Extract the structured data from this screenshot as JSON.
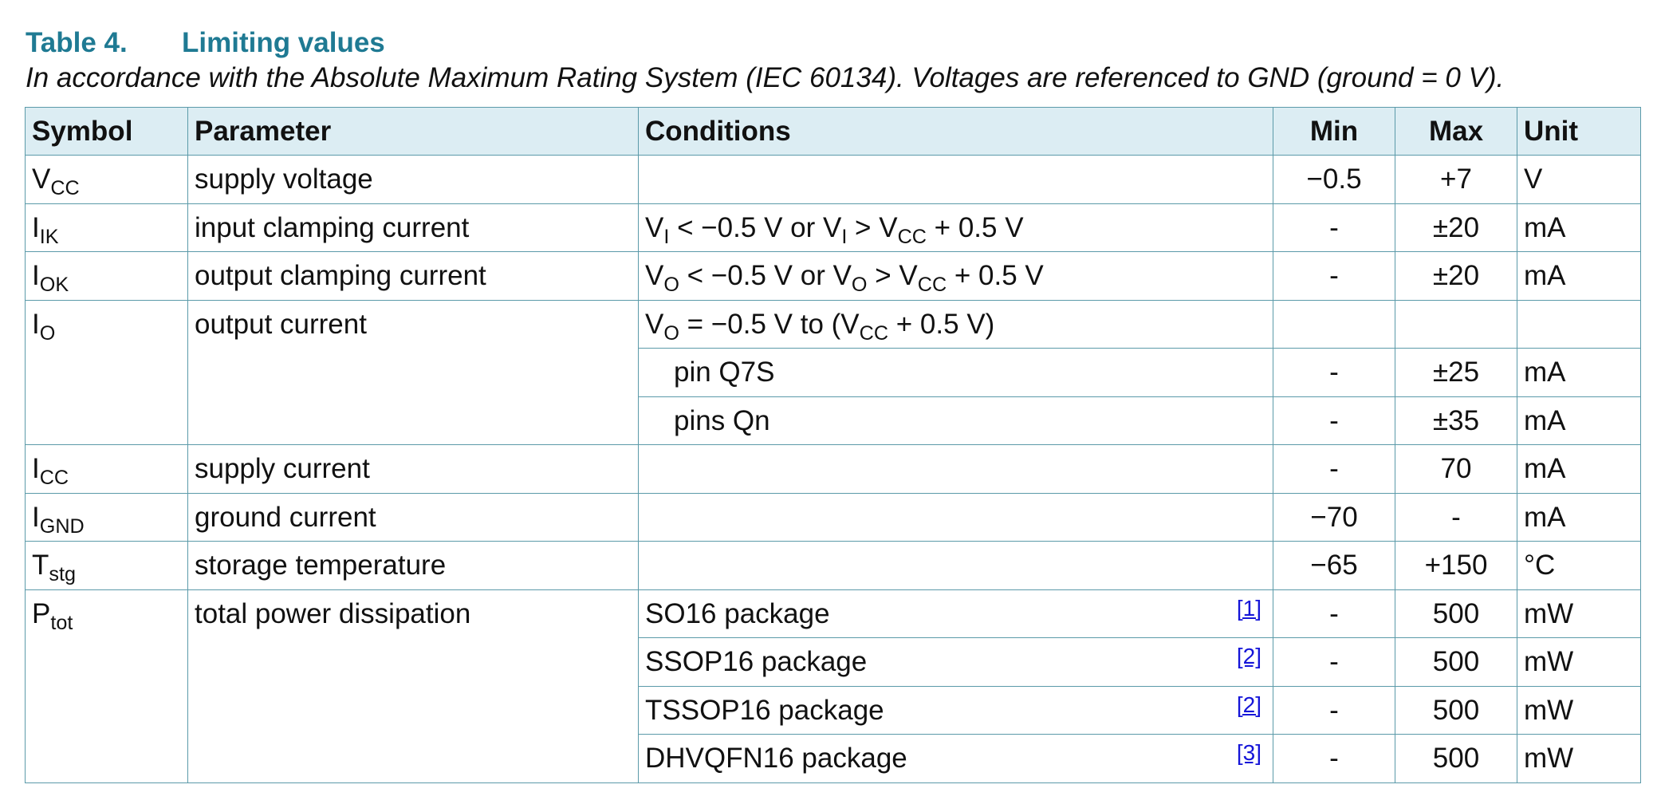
{
  "table_caption": {
    "number": "Table 4.",
    "title": "Limiting values"
  },
  "note": "In accordance with the Absolute Maximum Rating System (IEC 60134). Voltages are referenced to GND (ground = 0 V).",
  "headers": {
    "symbol": "Symbol",
    "parameter": "Parameter",
    "conditions": "Conditions",
    "min": "Min",
    "max": "Max",
    "unit": "Unit"
  },
  "rows": {
    "vcc": {
      "sym": "V",
      "sym_sub": "CC",
      "param": "supply voltage",
      "min": "−0.5",
      "max": "+7",
      "unit": "V"
    },
    "iik": {
      "sym": "I",
      "sym_sub": "IK",
      "param": "input clamping current",
      "cond": {
        "p1": "V",
        "s1": "I",
        "p2": " < −0.5 V or V",
        "s2": "I",
        "p3": " > V",
        "s3": "CC",
        "p4": " + 0.5 V"
      },
      "min": "-",
      "max": "±20",
      "unit": "mA"
    },
    "iok": {
      "sym": "I",
      "sym_sub": "OK",
      "param": "output clamping current",
      "cond": {
        "p1": "V",
        "s1": "O",
        "p2": " < −0.5 V or V",
        "s2": "O",
        "p3": " > V",
        "s3": "CC",
        "p4": " + 0.5 V"
      },
      "min": "-",
      "max": "±20",
      "unit": "mA"
    },
    "io": {
      "sym": "I",
      "sym_sub": "O",
      "param": "output current",
      "cond": {
        "p1": "V",
        "s1": "O",
        "p2": " = −0.5 V to (V",
        "s2": "CC",
        "p3": " + 0.5 V)"
      },
      "sub_rows": [
        {
          "cond": "pin Q7S",
          "min": "-",
          "max": "±25",
          "unit": "mA"
        },
        {
          "cond": "pins Qn",
          "min": "-",
          "max": "±35",
          "unit": "mA"
        }
      ]
    },
    "icc": {
      "sym": "I",
      "sym_sub": "CC",
      "param": "supply current",
      "min": "-",
      "max": "70",
      "unit": "mA"
    },
    "ignd": {
      "sym": "I",
      "sym_sub": "GND",
      "param": "ground current",
      "min": "−70",
      "max": "-",
      "unit": "mA"
    },
    "tstg": {
      "sym": "T",
      "sym_sub": "stg",
      "param": "storage temperature",
      "min": "−65",
      "max": "+150",
      "unit": "°C"
    },
    "ptot": {
      "sym": "P",
      "sym_sub": "tot",
      "param": "total power dissipation",
      "sub_rows": [
        {
          "cond": "SO16 package",
          "ref": "[1]",
          "min": "-",
          "max": "500",
          "unit": "mW"
        },
        {
          "cond": "SSOP16 package",
          "ref": "[2]",
          "min": "-",
          "max": "500",
          "unit": "mW"
        },
        {
          "cond": "TSSOP16 package",
          "ref": "[2]",
          "min": "-",
          "max": "500",
          "unit": "mW"
        },
        {
          "cond": "DHVQFN16 package",
          "ref": "[3]",
          "min": "-",
          "max": "500",
          "unit": "mW"
        }
      ]
    }
  },
  "colors": {
    "caption": "#1f7a93",
    "header_bg": "#dcedf3",
    "border": "#5b9aa9",
    "reference_link": "#1515d8"
  }
}
